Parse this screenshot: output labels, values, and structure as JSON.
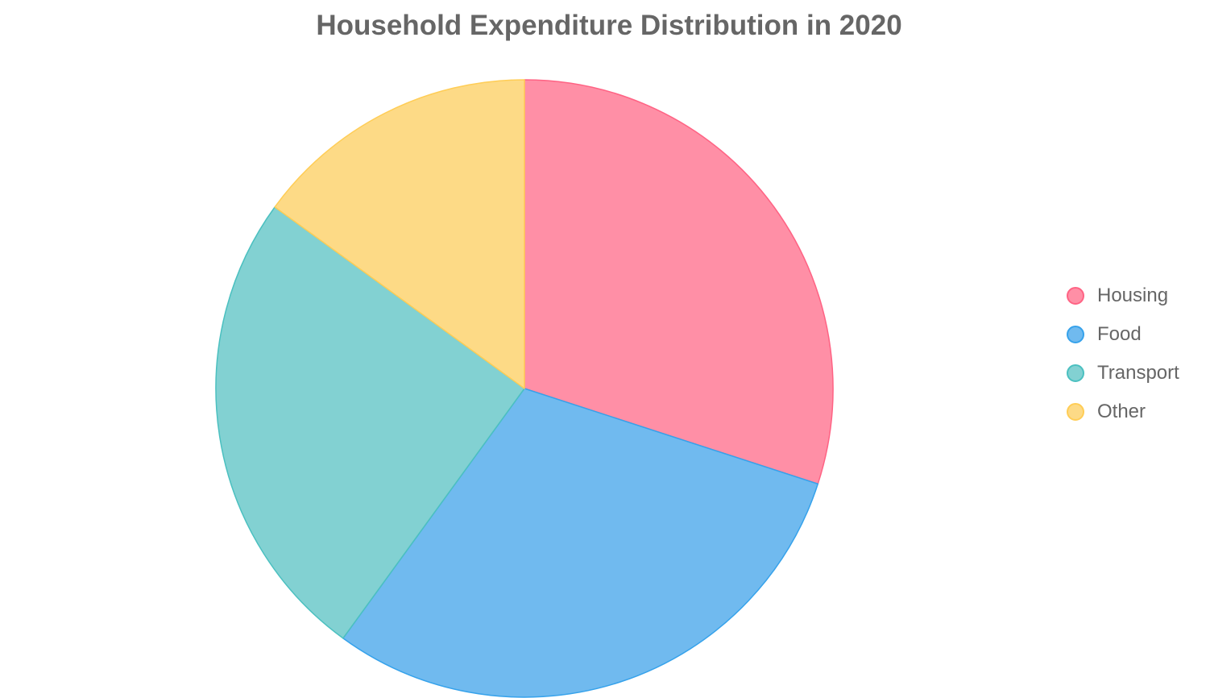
{
  "chart_data": {
    "type": "pie",
    "title": "Household Expenditure Distribution in 2020",
    "categories": [
      "Housing",
      "Food",
      "Transport",
      "Other"
    ],
    "values": [
      30,
      30,
      25,
      15
    ],
    "colors": [
      "#ff8fa6",
      "#70baef",
      "#82d1d2",
      "#fdda86"
    ],
    "border_colors": [
      "#ff6384",
      "#36a2eb",
      "#4bc0c0",
      "#ffcd56"
    ],
    "legend_position": "right"
  }
}
